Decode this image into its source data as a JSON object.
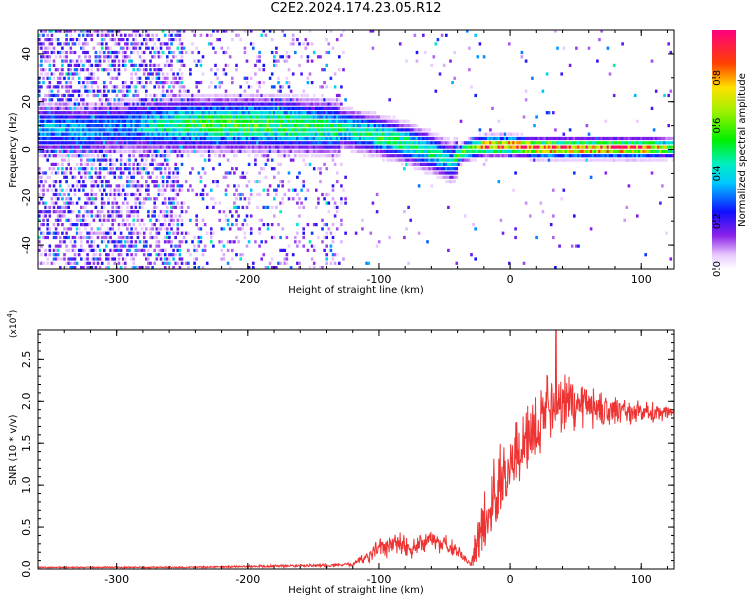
{
  "figure_title": "C2E2.2024.174.23.05.R12",
  "colors": {
    "snr_line": "#ee3333",
    "axis": "#000000"
  },
  "chart_data": [
    {
      "type": "heatmap",
      "title": "",
      "xlabel": "Height of straight line (km)",
      "ylabel": "Frequency (Hz)",
      "xlim": [
        -360,
        125
      ],
      "ylim": [
        -50,
        50
      ],
      "xticks": [
        -300,
        -200,
        -100,
        0,
        100
      ],
      "xtick_labels": [
        "-300",
        "-200",
        "-100",
        "0",
        "100"
      ],
      "yticks": [
        -40,
        -20,
        0,
        20,
        40
      ],
      "ytick_labels": [
        "-40",
        "-20",
        "0",
        "20",
        "40"
      ],
      "colormap": "rainbow (white-violet-blue-cyan-green-yellow-red-magenta)",
      "colorbar": {
        "label": "Normalized spectral amplitude",
        "range": [
          0,
          1
        ],
        "ticks": [
          0.0,
          0.2,
          0.4,
          0.6,
          0.8
        ],
        "tick_labels": [
          "0.0",
          "0.2",
          "0.4",
          "0.6",
          "0.8"
        ]
      },
      "ridge": {
        "description_points_x": [
          -345,
          -330,
          -300,
          -250,
          -220,
          -180,
          -150,
          -125,
          -100,
          -80,
          -60,
          -45,
          -35,
          -20,
          0,
          20,
          60,
          100,
          120
        ],
        "description_points_y": [
          8,
          7,
          9,
          10,
          10,
          10,
          9,
          8,
          5,
          2,
          -2,
          -6,
          -1,
          1,
          1,
          0,
          0,
          0,
          0
        ],
        "peak_amplitude": [
          0.35,
          0.35,
          0.3,
          0.5,
          0.55,
          0.55,
          0.5,
          0.45,
          0.5,
          0.5,
          0.45,
          0.4,
          0.6,
          0.85,
          0.85,
          0.9,
          0.9,
          0.9,
          0.6
        ]
      }
    },
    {
      "type": "line",
      "title": "",
      "xlabel": "Height of straight line (km)",
      "ylabel": "SNR (10 * v/v)",
      "y_multiplier_label": "(x10^4)",
      "xlim": [
        -360,
        125
      ],
      "ylim": [
        0,
        2.85
      ],
      "xticks": [
        -300,
        -200,
        -100,
        0,
        100
      ],
      "xtick_labels": [
        "-300",
        "-200",
        "-100",
        "0",
        "100"
      ],
      "yticks": [
        0.0,
        0.5,
        1.0,
        1.5,
        2.0,
        2.5
      ],
      "ytick_labels": [
        "0.0",
        "0.5",
        "1.0",
        "1.5",
        "2.0",
        "2.5"
      ],
      "series": [
        {
          "envelope_x": [
            -360,
            -300,
            -250,
            -200,
            -150,
            -120,
            -105,
            -90,
            -75,
            -60,
            -50,
            -40,
            -30,
            -25,
            -20,
            -10,
            0,
            10,
            20,
            30,
            40,
            60,
            80,
            100,
            125
          ],
          "envelope_mean": [
            0.02,
            0.02,
            0.02,
            0.03,
            0.04,
            0.05,
            0.18,
            0.3,
            0.25,
            0.35,
            0.3,
            0.2,
            0.05,
            0.3,
            0.6,
            0.9,
            1.2,
            1.5,
            1.75,
            1.9,
            1.95,
            1.95,
            1.9,
            1.88,
            1.85
          ],
          "envelope_amplitude": [
            0.01,
            0.01,
            0.01,
            0.015,
            0.02,
            0.03,
            0.12,
            0.18,
            0.15,
            0.15,
            0.15,
            0.1,
            0.03,
            0.35,
            0.5,
            0.6,
            0.5,
            0.45,
            0.45,
            0.5,
            0.45,
            0.3,
            0.2,
            0.15,
            0.1
          ],
          "peak_x": 35,
          "peak_y": 2.85
        }
      ]
    }
  ]
}
